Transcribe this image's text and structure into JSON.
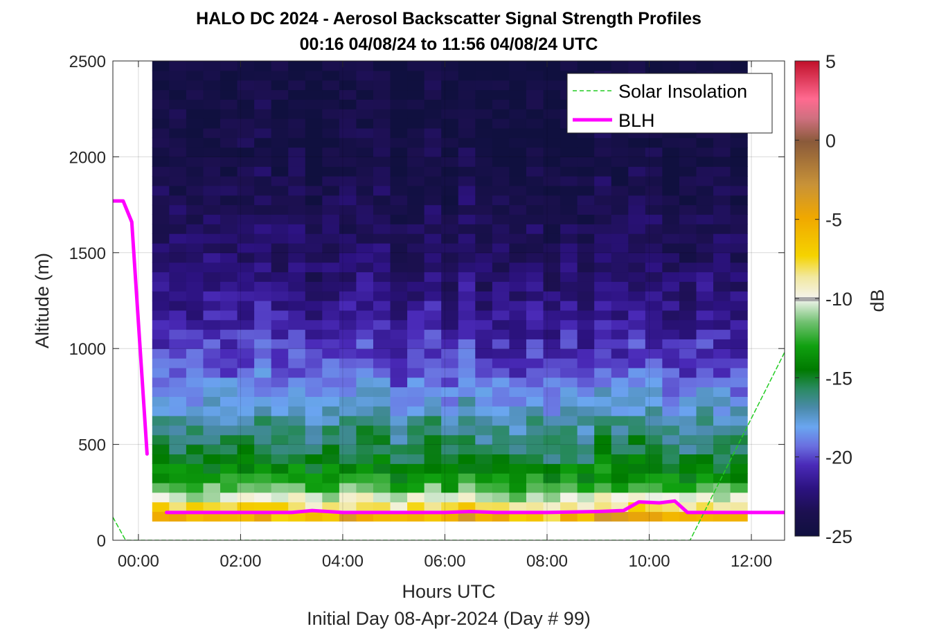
{
  "figure": {
    "title_line1": "HALO DC 2024 - Aerosol Backscatter Signal Strength Profiles",
    "title_line2": "00:16 04/08/24 to 11:56 04/08/24  UTC",
    "subtitle": "Initial Day 08-Apr-2024 (Day # 99)"
  },
  "chart_data": {
    "type": "heatmap",
    "title": "HALO DC 2024 - Aerosol Backscatter Signal Strength Profiles",
    "subtitle": "00:16 04/08/24 to 11:56 04/08/24  UTC",
    "xlabel": "Hours UTC",
    "ylabel": "Altitude (m)",
    "x_unit": "hours",
    "xlim": [
      -0.5,
      12.65
    ],
    "ylim": [
      0,
      2500
    ],
    "x_ticks": [
      0,
      2,
      4,
      6,
      8,
      10,
      12
    ],
    "x_tick_labels": [
      "00:00",
      "02:00",
      "04:00",
      "06:00",
      "08:00",
      "10:00",
      "12:00"
    ],
    "y_ticks": [
      0,
      500,
      1000,
      1500,
      2000,
      2500
    ],
    "y_tick_labels": [
      "0",
      "500",
      "1000",
      "1500",
      "2000",
      "2500"
    ],
    "grid": true,
    "legend_position": "top-right",
    "colorbar": {
      "label": "dB",
      "range": [
        -25,
        5
      ],
      "ticks": [
        5,
        0,
        -5,
        -10,
        -15,
        -20,
        -25
      ],
      "tick_labels": [
        "5",
        "0",
        "-5",
        "-10",
        "-15",
        "-20",
        "-25"
      ]
    },
    "heatmap": {
      "x_start": 0.27,
      "x_end": 11.92,
      "n_cols": 35,
      "y_bottom": 100,
      "y_top": 2500,
      "n_rows": 48,
      "profile_db_approx": {
        "altitudes": [
          100,
          150,
          200,
          250,
          300,
          400,
          500,
          600,
          700,
          800,
          900,
          1000,
          1100,
          1200,
          1300,
          1500,
          1700,
          2000,
          2500
        ],
        "db": [
          -4,
          -6.5,
          -9.5,
          -11.5,
          -13,
          -14.8,
          -15.8,
          -16.5,
          -17.8,
          -18.8,
          -19.8,
          -20.5,
          -21,
          -21.6,
          -22.2,
          -23,
          -23.5,
          -24.4,
          -24.8
        ]
      }
    },
    "series": [
      {
        "name": "Solar Insolation",
        "color": "#22cc22",
        "style": "dashed",
        "x": [
          -0.5,
          -0.25,
          10.8,
          12.65
        ],
        "y": [
          120,
          0,
          0,
          980
        ]
      },
      {
        "name": "BLH",
        "color": "#ff00ff",
        "style": "solid",
        "x": [
          -0.5,
          -0.3,
          -0.13,
          0.17,
          null,
          0.55,
          2,
          3,
          3.4,
          4,
          5,
          6,
          6.5,
          7,
          8,
          9,
          9.5,
          9.8,
          10.2,
          10.5,
          10.75,
          11.5,
          12.65
        ],
        "y": [
          1770,
          1770,
          1660,
          450,
          null,
          145,
          145,
          145,
          155,
          145,
          145,
          145,
          150,
          145,
          145,
          150,
          155,
          200,
          195,
          205,
          145,
          145,
          145
        ]
      }
    ]
  }
}
